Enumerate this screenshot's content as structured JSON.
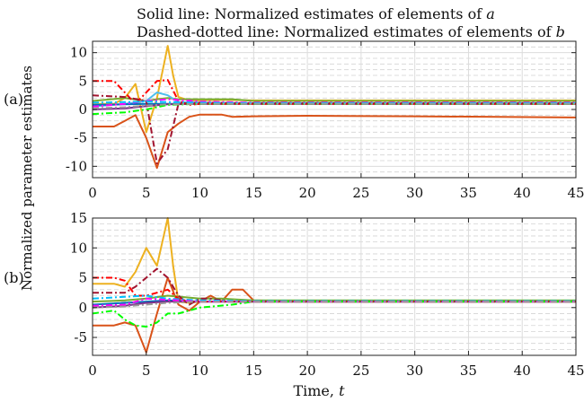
{
  "header": {
    "line1_prefix": "Solid line: Normalized estimates of elements of ",
    "line1_var": "a",
    "line2_prefix": "Dashed-dotted line: Normalized estimates of elements of ",
    "line2_var": "b"
  },
  "xlabel_prefix": "Time, ",
  "xlabel_var": "t",
  "ylabel": "Normalized parameter estimates",
  "chart_data": [
    {
      "type": "line",
      "panel_label": "(a)",
      "xlim": [
        0,
        45
      ],
      "ylim": [
        -12,
        12
      ],
      "x_ticks": [
        0,
        5,
        10,
        15,
        20,
        25,
        30,
        35,
        40,
        45
      ],
      "y_ticks": [
        -10,
        -5,
        0,
        5,
        10
      ],
      "grid": true,
      "series": [
        {
          "style": "solid",
          "color": "#edb120",
          "x": [
            0,
            2,
            3,
            4,
            5,
            6,
            7,
            7.5,
            8,
            9,
            10,
            12,
            15,
            20,
            30,
            45
          ],
          "y": [
            1,
            1,
            2,
            4.5,
            -4,
            2,
            11.2,
            6,
            2.2,
            1.6,
            1.6,
            1.7,
            1.6,
            1.6,
            1.6,
            1.6
          ]
        },
        {
          "style": "solid",
          "color": "#d95319",
          "x": [
            0,
            2,
            3,
            4,
            5,
            6,
            7,
            8,
            9,
            10,
            12,
            13,
            15,
            20,
            30,
            45
          ],
          "y": [
            -3,
            -3,
            -2,
            -1,
            -5,
            -10.3,
            -4,
            -2.5,
            -1.3,
            -0.9,
            -0.9,
            -1.3,
            -1.2,
            -1.1,
            -1.2,
            -1.4
          ]
        },
        {
          "style": "solid",
          "color": "#77ac30",
          "x": [
            0,
            3,
            5,
            6,
            7,
            8,
            10,
            13,
            15,
            20,
            45
          ],
          "y": [
            1.5,
            2,
            1.5,
            1.8,
            2,
            1.8,
            1.8,
            1.8,
            1.5,
            1.5,
            1.5
          ]
        },
        {
          "style": "solid",
          "color": "#4dbeee",
          "x": [
            0,
            3,
            5,
            6,
            7,
            8,
            10,
            15,
            45
          ],
          "y": [
            0.5,
            1,
            1.5,
            3,
            2.5,
            1.3,
            1.2,
            1.1,
            1.1
          ]
        },
        {
          "style": "solid",
          "color": "#0072bd",
          "x": [
            0,
            3,
            5,
            7,
            10,
            15,
            45
          ],
          "y": [
            0.8,
            0.9,
            1,
            1,
            1,
            1,
            1
          ]
        },
        {
          "style": "solid",
          "color": "#7e2f8e",
          "x": [
            0,
            3,
            5,
            7,
            10,
            15,
            45
          ],
          "y": [
            0,
            0.2,
            0.6,
            0.9,
            1,
            1,
            1
          ]
        },
        {
          "style": "dashdot",
          "color": "#ff0000",
          "x": [
            0,
            2,
            3,
            4,
            5,
            6,
            7,
            8,
            9,
            10,
            15,
            45
          ],
          "y": [
            5,
            5,
            3,
            1,
            3,
            5,
            5.2,
            1.5,
            0.8,
            1,
            1,
            1
          ]
        },
        {
          "style": "dashdot",
          "color": "#a2142f",
          "x": [
            0,
            3,
            5,
            6,
            7,
            8,
            10,
            15,
            45
          ],
          "y": [
            2.5,
            2.2,
            1.5,
            -9.5,
            -7,
            1,
            1.2,
            1.1,
            1.1
          ]
        },
        {
          "style": "dashdot",
          "color": "#ff00ff",
          "x": [
            0,
            3,
            5,
            7,
            10,
            15,
            45
          ],
          "y": [
            0.5,
            1,
            1.5,
            1.8,
            1.4,
            1.2,
            1.2
          ]
        },
        {
          "style": "dashdot",
          "color": "#00ff00",
          "x": [
            0,
            3,
            5,
            7,
            10,
            15,
            45
          ],
          "y": [
            -0.8,
            -0.5,
            0,
            0.8,
            1,
            1,
            1
          ]
        },
        {
          "style": "dashdot",
          "color": "#00bfff",
          "x": [
            0,
            3,
            5,
            7,
            10,
            15,
            45
          ],
          "y": [
            1.2,
            1.3,
            1.4,
            1.3,
            1.2,
            1.1,
            1.1
          ]
        },
        {
          "style": "dashdot",
          "color": "#999999",
          "x": [
            0,
            3,
            5,
            7,
            10,
            15,
            45
          ],
          "y": [
            0.2,
            0.4,
            0.7,
            0.9,
            1,
            1,
            1
          ]
        }
      ]
    },
    {
      "type": "line",
      "panel_label": "(b)",
      "xlim": [
        0,
        45
      ],
      "ylim": [
        -8,
        15
      ],
      "x_ticks": [
        0,
        5,
        10,
        15,
        20,
        25,
        30,
        35,
        40,
        45
      ],
      "y_ticks": [
        -5,
        0,
        5,
        10,
        15
      ],
      "grid": true,
      "series": [
        {
          "style": "solid",
          "color": "#edb120",
          "x": [
            0,
            2,
            3,
            4,
            5,
            6,
            7,
            7.5,
            8,
            9,
            10,
            12,
            15,
            20,
            45
          ],
          "y": [
            4,
            4,
            3.5,
            6,
            10,
            7,
            15,
            7,
            1,
            0.8,
            1,
            1,
            1,
            1,
            1
          ]
        },
        {
          "style": "solid",
          "color": "#d95319",
          "x": [
            0,
            2,
            3,
            4,
            5,
            6,
            7,
            8,
            9,
            10,
            11,
            12,
            13,
            14,
            15,
            20,
            45
          ],
          "y": [
            -3,
            -3,
            -2.5,
            -3,
            -7.5,
            -1,
            5,
            0.5,
            -0.5,
            1,
            2,
            1,
            3,
            3,
            1.2,
            1,
            1
          ]
        },
        {
          "style": "solid",
          "color": "#77ac30",
          "x": [
            0,
            3,
            5,
            7,
            10,
            12,
            15,
            45
          ],
          "y": [
            1,
            1.2,
            1.5,
            2,
            1.5,
            1.5,
            1.2,
            1.2
          ]
        },
        {
          "style": "solid",
          "color": "#0072bd",
          "x": [
            0,
            3,
            5,
            7,
            10,
            15,
            45
          ],
          "y": [
            0.5,
            0.8,
            1,
            1.2,
            1,
            1,
            1
          ]
        },
        {
          "style": "solid",
          "color": "#7e2f8e",
          "x": [
            0,
            3,
            5,
            7,
            10,
            15,
            45
          ],
          "y": [
            0,
            0.3,
            0.8,
            1,
            1,
            1,
            1
          ]
        },
        {
          "style": "dashdot",
          "color": "#ff0000",
          "x": [
            0,
            2,
            3,
            4,
            5,
            6,
            7,
            8,
            9,
            10,
            15,
            45
          ],
          "y": [
            5,
            5,
            4.5,
            2,
            2,
            2.5,
            3,
            1.5,
            1,
            1,
            1,
            1
          ]
        },
        {
          "style": "dashdot",
          "color": "#a2142f",
          "x": [
            0,
            3,
            4,
            5,
            6,
            7,
            8,
            9,
            10,
            11,
            13,
            15,
            45
          ],
          "y": [
            2.5,
            2.5,
            3.5,
            5,
            6.5,
            5,
            2,
            0.5,
            1.5,
            1.5,
            1,
            1,
            1
          ]
        },
        {
          "style": "dashdot",
          "color": "#00ff00",
          "x": [
            0,
            2,
            3,
            4,
            5,
            6,
            7,
            8,
            9,
            10,
            13,
            15,
            45
          ],
          "y": [
            -1,
            -0.5,
            -2,
            -3,
            -3.2,
            -2.5,
            -1,
            -1,
            -0.5,
            0,
            0.5,
            1,
            1
          ]
        },
        {
          "style": "dashdot",
          "color": "#00bfff",
          "x": [
            0,
            3,
            5,
            7,
            10,
            15,
            45
          ],
          "y": [
            1.5,
            1.8,
            2,
            1.5,
            1.2,
            1.1,
            1.1
          ]
        },
        {
          "style": "dashdot",
          "color": "#ff00ff",
          "x": [
            0,
            3,
            5,
            7,
            10,
            15,
            45
          ],
          "y": [
            0.3,
            0.5,
            1.5,
            1.3,
            1,
            1,
            1
          ]
        },
        {
          "style": "dashdot",
          "color": "#999999",
          "x": [
            0,
            3,
            5,
            7,
            10,
            15,
            45
          ],
          "y": [
            0,
            0.2,
            0.5,
            0.8,
            1,
            1,
            1
          ]
        }
      ]
    }
  ]
}
